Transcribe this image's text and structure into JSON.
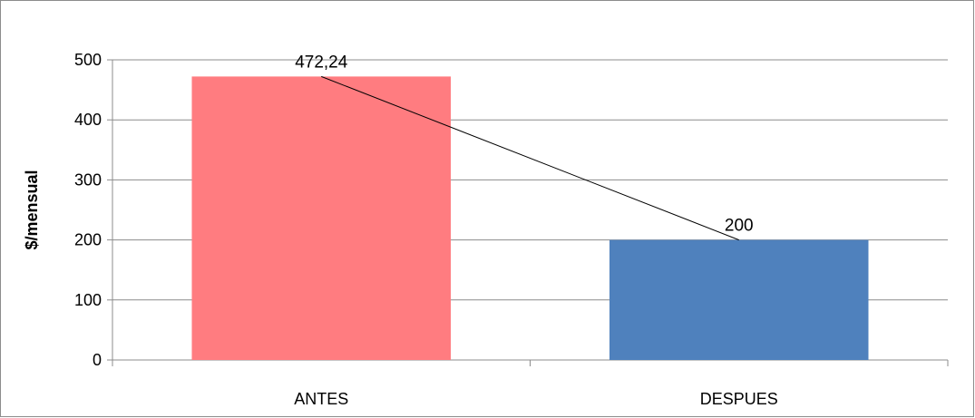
{
  "chart_data": {
    "type": "bar",
    "title": "",
    "xlabel": "",
    "ylabel": "$/mensual",
    "categories": [
      "ANTES",
      "DESPUES"
    ],
    "values": [
      472.24,
      200
    ],
    "value_labels": [
      "472,24",
      "200"
    ],
    "ylim": [
      0,
      500
    ],
    "yticks": [
      0,
      100,
      200,
      300,
      400,
      500
    ],
    "ytick_labels": [
      "0",
      "100",
      "200",
      "300",
      "400",
      "500"
    ],
    "grid": true,
    "legend": "none",
    "trend_line": true,
    "colors": {
      "ANTES": "#FF7C80",
      "DESPUES": "#4F81BD",
      "grid": "#8c8c8c",
      "trend_line": "#000000"
    }
  }
}
